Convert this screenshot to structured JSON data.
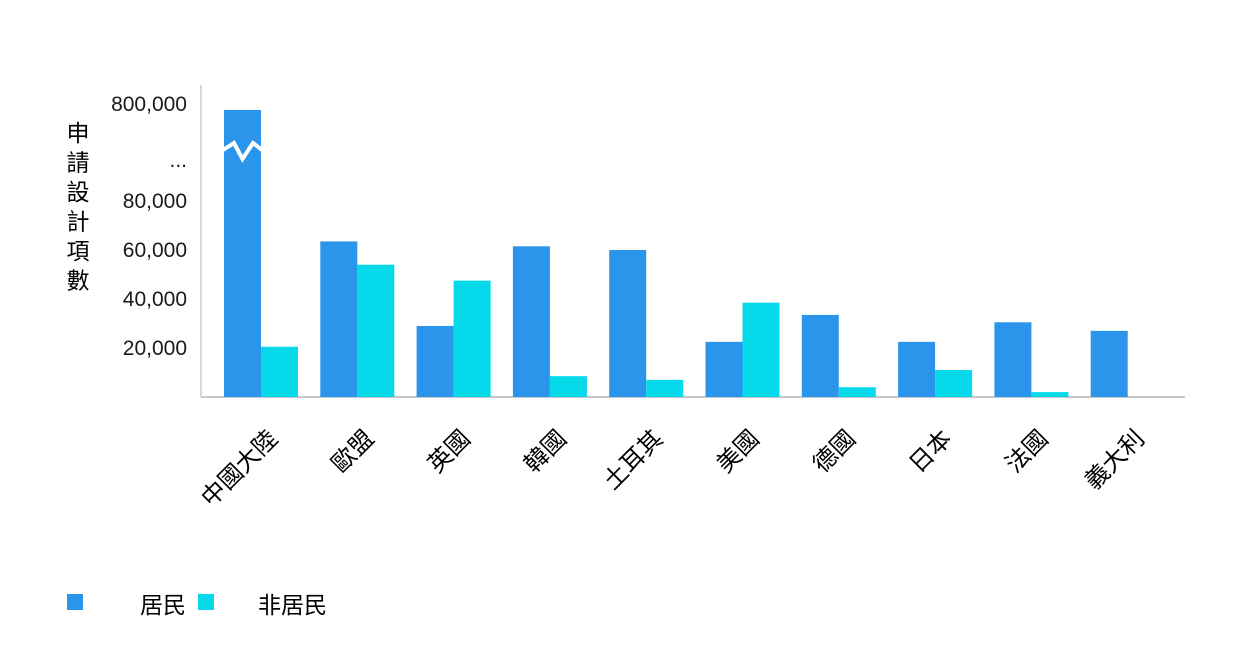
{
  "chart_data": {
    "type": "bar",
    "ylabel": "申請設計項數",
    "categories": [
      "中國大陸",
      "歐盟",
      "英國",
      "韓國",
      "土耳其",
      "美國",
      "德國",
      "日本",
      "法國",
      "義大利"
    ],
    "series": [
      {
        "name": "居民",
        "color": "#2b95ec",
        "values": [
          800000,
          63500,
          29000,
          61500,
          60000,
          22500,
          33500,
          22500,
          30500,
          27000
        ]
      },
      {
        "name": "非居民",
        "color": "#05d9ea",
        "values": [
          20500,
          54000,
          47500,
          8500,
          7000,
          38500,
          4000,
          11000,
          2000,
          null
        ]
      }
    ],
    "yticks": [
      "20,000",
      "40,000",
      "60,000",
      "80,000",
      "...",
      "800,000"
    ],
    "axis_break": {
      "label": "...",
      "lower_max": 100000,
      "upper_value": 800000
    },
    "ylim": [
      0,
      800000
    ],
    "legend": "bottom-left",
    "grid": false
  }
}
